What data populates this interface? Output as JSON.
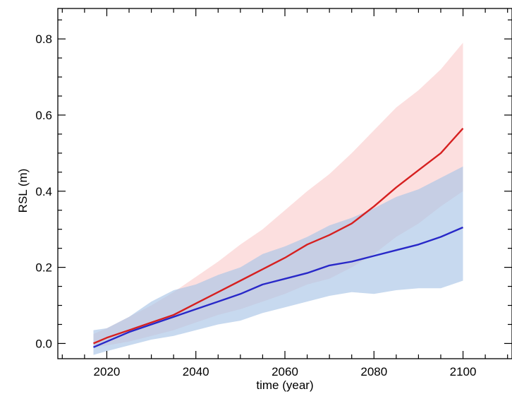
{
  "chart_data": {
    "type": "line",
    "title": "",
    "xlabel": "time (year)",
    "ylabel": "RSL (m)",
    "xlim": [
      2009,
      2111
    ],
    "ylim": [
      -0.04,
      0.88
    ],
    "x_ticks": [
      2020,
      2040,
      2060,
      2080,
      2100
    ],
    "y_ticks": [
      0.0,
      0.2,
      0.4,
      0.6,
      0.8
    ],
    "grid": false,
    "legend": "none",
    "series": [
      {
        "color": "#d62020",
        "band_color": "#f9c4c4",
        "x": [
          2017,
          2020,
          2025,
          2030,
          2035,
          2040,
          2045,
          2050,
          2055,
          2060,
          2065,
          2070,
          2075,
          2080,
          2085,
          2090,
          2095,
          2100
        ],
        "values": [
          0.0,
          0.015,
          0.035,
          0.055,
          0.075,
          0.105,
          0.135,
          0.165,
          0.195,
          0.225,
          0.26,
          0.285,
          0.315,
          0.36,
          0.41,
          0.455,
          0.5,
          0.565
        ],
        "lower": [
          -0.01,
          -0.005,
          0.005,
          0.02,
          0.035,
          0.055,
          0.075,
          0.09,
          0.11,
          0.13,
          0.155,
          0.17,
          0.2,
          0.235,
          0.28,
          0.315,
          0.36,
          0.4
        ],
        "upper": [
          0.025,
          0.04,
          0.07,
          0.1,
          0.135,
          0.175,
          0.215,
          0.26,
          0.3,
          0.35,
          0.4,
          0.445,
          0.5,
          0.56,
          0.62,
          0.665,
          0.72,
          0.79
        ]
      },
      {
        "color": "#2828c8",
        "band_color": "#a9c4e6",
        "x": [
          2017,
          2020,
          2025,
          2030,
          2035,
          2040,
          2045,
          2050,
          2055,
          2060,
          2065,
          2070,
          2075,
          2080,
          2085,
          2090,
          2095,
          2100
        ],
        "values": [
          -0.01,
          0.005,
          0.03,
          0.05,
          0.07,
          0.09,
          0.11,
          0.13,
          0.155,
          0.17,
          0.185,
          0.205,
          0.215,
          0.23,
          0.245,
          0.26,
          0.28,
          0.305
        ],
        "lower": [
          -0.03,
          -0.02,
          -0.005,
          0.01,
          0.02,
          0.035,
          0.05,
          0.06,
          0.08,
          0.095,
          0.11,
          0.125,
          0.135,
          0.13,
          0.14,
          0.145,
          0.145,
          0.165
        ],
        "upper": [
          0.035,
          0.04,
          0.07,
          0.11,
          0.14,
          0.155,
          0.18,
          0.2,
          0.235,
          0.255,
          0.28,
          0.31,
          0.33,
          0.355,
          0.385,
          0.405,
          0.435,
          0.465
        ]
      }
    ]
  }
}
